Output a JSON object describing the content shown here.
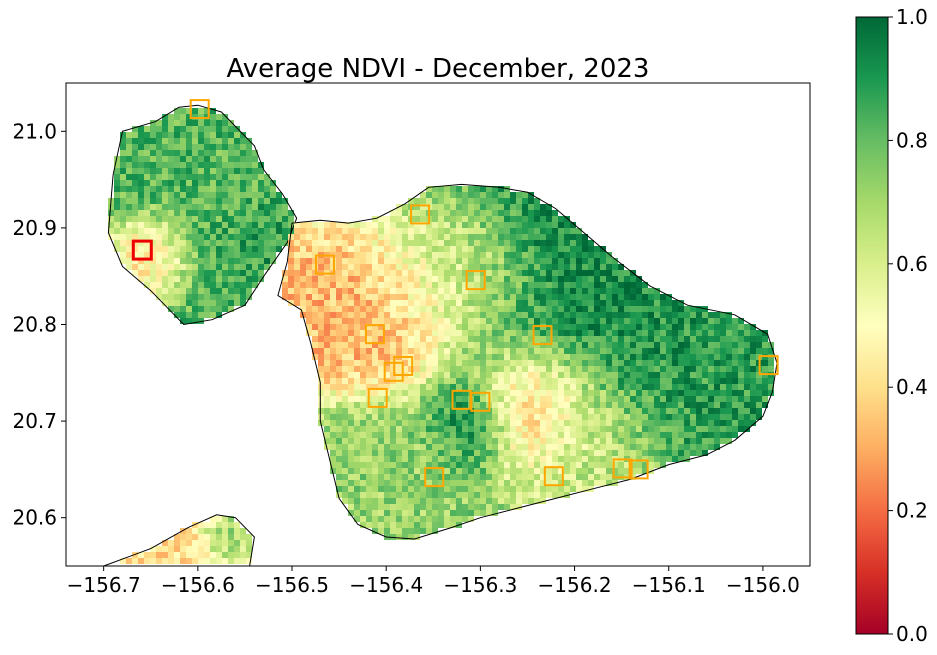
{
  "chart_data": {
    "type": "heatmap",
    "title": "Average NDVI - December, 2023",
    "xlabel": "",
    "ylabel": "",
    "xlim": [
      -156.74,
      -155.95
    ],
    "ylim": [
      20.55,
      21.05
    ],
    "x_ticks": [
      -156.7,
      -156.6,
      -156.5,
      -156.4,
      -156.3,
      -156.2,
      -156.1,
      -156.0
    ],
    "x_tick_labels": [
      "−156.7",
      "−156.6",
      "−156.5",
      "−156.4",
      "−156.3",
      "−156.2",
      "−156.1",
      "−156.0"
    ],
    "y_ticks": [
      20.6,
      20.7,
      20.8,
      20.9,
      21.0
    ],
    "y_tick_labels": [
      "20.6",
      "20.7",
      "20.8",
      "20.9",
      "21.0"
    ],
    "grid": false,
    "colormap": "RdYlGn",
    "colorbar": {
      "range": [
        0.0,
        1.0
      ],
      "ticks": [
        0.0,
        0.2,
        0.4,
        0.6,
        0.8,
        1.0
      ],
      "tick_labels": [
        "0.0",
        "0.2",
        "0.4",
        "0.6",
        "0.8",
        "1.0"
      ],
      "stops": [
        "#a50026",
        "#d73027",
        "#f46d43",
        "#fdae61",
        "#fee08b",
        "#ffffbf",
        "#d9ef8b",
        "#a6d96a",
        "#66bd63",
        "#1a9850",
        "#006837"
      ]
    },
    "markers": {
      "color": "#ffa500",
      "highlight_color": "#ee0000",
      "points": [
        {
          "lon": -156.598,
          "lat": 21.023,
          "highlight": false
        },
        {
          "lon": -156.659,
          "lat": 20.877,
          "highlight": true
        },
        {
          "lon": -156.465,
          "lat": 20.862,
          "highlight": false
        },
        {
          "lon": -156.364,
          "lat": 20.914,
          "highlight": false
        },
        {
          "lon": -156.305,
          "lat": 20.846,
          "highlight": false
        },
        {
          "lon": -156.234,
          "lat": 20.789,
          "highlight": false
        },
        {
          "lon": -156.412,
          "lat": 20.79,
          "highlight": false
        },
        {
          "lon": -156.382,
          "lat": 20.757,
          "highlight": false
        },
        {
          "lon": -156.392,
          "lat": 20.751,
          "highlight": false
        },
        {
          "lon": -156.409,
          "lat": 20.724,
          "highlight": false
        },
        {
          "lon": -156.32,
          "lat": 20.722,
          "highlight": false
        },
        {
          "lon": -156.3,
          "lat": 20.72,
          "highlight": false
        },
        {
          "lon": -156.349,
          "lat": 20.642,
          "highlight": false
        },
        {
          "lon": -156.222,
          "lat": 20.643,
          "highlight": false
        },
        {
          "lon": -156.149,
          "lat": 20.651,
          "highlight": false
        },
        {
          "lon": -156.132,
          "lat": 20.65,
          "highlight": false
        },
        {
          "lon": -155.994,
          "lat": 20.758,
          "highlight": false
        }
      ]
    },
    "islands": [
      {
        "name": "west",
        "outline": [
          [
            -156.69,
            20.955
          ],
          [
            -156.68,
            21.0
          ],
          [
            -156.645,
            21.01
          ],
          [
            -156.62,
            21.025
          ],
          [
            -156.6,
            21.027
          ],
          [
            -156.575,
            21.02
          ],
          [
            -156.56,
            21.005
          ],
          [
            -156.54,
            20.985
          ],
          [
            -156.53,
            20.96
          ],
          [
            -156.51,
            20.935
          ],
          [
            -156.495,
            20.91
          ],
          [
            -156.505,
            20.885
          ],
          [
            -156.53,
            20.85
          ],
          [
            -156.55,
            20.82
          ],
          [
            -156.585,
            20.805
          ],
          [
            -156.615,
            20.8
          ],
          [
            -156.65,
            20.835
          ],
          [
            -156.68,
            20.86
          ],
          [
            -156.695,
            20.895
          ]
        ],
        "zones": [
          {
            "lon": -156.59,
            "lat": 20.935,
            "r": 0.075,
            "v": 0.82
          },
          {
            "lon": -156.65,
            "lat": 20.875,
            "r": 0.03,
            "v": 0.38
          },
          {
            "lon": -156.53,
            "lat": 20.89,
            "r": 0.03,
            "v": 0.9
          }
        ]
      },
      {
        "name": "east",
        "outline": [
          [
            -156.5,
            20.905
          ],
          [
            -156.47,
            20.908
          ],
          [
            -156.44,
            20.905
          ],
          [
            -156.41,
            20.91
          ],
          [
            -156.38,
            20.925
          ],
          [
            -156.355,
            20.942
          ],
          [
            -156.32,
            20.945
          ],
          [
            -156.28,
            20.942
          ],
          [
            -156.25,
            20.937
          ],
          [
            -156.22,
            20.92
          ],
          [
            -156.19,
            20.895
          ],
          [
            -156.16,
            20.87
          ],
          [
            -156.12,
            20.84
          ],
          [
            -156.08,
            20.82
          ],
          [
            -156.03,
            20.81
          ],
          [
            -155.995,
            20.79
          ],
          [
            -155.985,
            20.76
          ],
          [
            -155.99,
            20.73
          ],
          [
            -156.0,
            20.705
          ],
          [
            -156.03,
            20.68
          ],
          [
            -156.06,
            20.665
          ],
          [
            -156.1,
            20.655
          ],
          [
            -156.14,
            20.64
          ],
          [
            -156.18,
            20.63
          ],
          [
            -156.22,
            20.62
          ],
          [
            -156.26,
            20.61
          ],
          [
            -156.3,
            20.6
          ],
          [
            -156.33,
            20.59
          ],
          [
            -156.37,
            20.578
          ],
          [
            -156.4,
            20.58
          ],
          [
            -156.43,
            20.593
          ],
          [
            -156.45,
            20.62
          ],
          [
            -156.46,
            20.66
          ],
          [
            -156.47,
            20.7
          ],
          [
            -156.47,
            20.74
          ],
          [
            -156.48,
            20.78
          ],
          [
            -156.49,
            20.815
          ],
          [
            -156.515,
            20.83
          ],
          [
            -156.505,
            20.865
          ]
        ],
        "zones": [
          {
            "lon": -156.4,
            "lat": 20.8,
            "r": 0.055,
            "v": 0.32
          },
          {
            "lon": -156.32,
            "lat": 20.84,
            "r": 0.06,
            "v": 0.55
          },
          {
            "lon": -156.2,
            "lat": 20.82,
            "r": 0.11,
            "v": 0.93
          },
          {
            "lon": -156.06,
            "lat": 20.76,
            "r": 0.08,
            "v": 0.88
          },
          {
            "lon": -156.24,
            "lat": 20.72,
            "r": 0.05,
            "v": 0.22
          },
          {
            "lon": -156.31,
            "lat": 20.7,
            "r": 0.035,
            "v": 0.94
          },
          {
            "lon": -156.18,
            "lat": 20.67,
            "r": 0.06,
            "v": 0.62
          },
          {
            "lon": -156.39,
            "lat": 20.65,
            "r": 0.06,
            "v": 0.72
          }
        ]
      },
      {
        "name": "kahoolawe",
        "outline": [
          [
            -156.7,
            20.55
          ],
          [
            -156.65,
            20.568
          ],
          [
            -156.61,
            20.59
          ],
          [
            -156.58,
            20.603
          ],
          [
            -156.56,
            20.6
          ],
          [
            -156.54,
            20.58
          ],
          [
            -156.545,
            20.55
          ]
        ],
        "zones": [
          {
            "lon": -156.62,
            "lat": 20.575,
            "r": 0.045,
            "v": 0.4
          },
          {
            "lon": -156.575,
            "lat": 20.58,
            "r": 0.02,
            "v": 0.78
          }
        ]
      }
    ]
  }
}
